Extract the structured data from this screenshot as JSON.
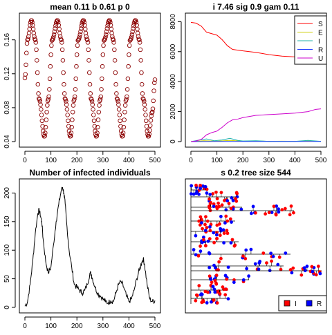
{
  "chart_data": [
    {
      "type": "scatter",
      "title": "mean 0.11 b 0.61 p 0",
      "x_ticks": [
        "0",
        "100",
        "200",
        "300",
        "400",
        "500"
      ],
      "y_ticks": [
        "0.04",
        "0.08",
        "0.12",
        "0.16"
      ],
      "xlim": [
        0,
        500
      ],
      "ylim": [
        0.04,
        0.185
      ],
      "marker_color": "#8b0000",
      "series": {
        "x": [
          0,
          10,
          25,
          40,
          55,
          75,
          90,
          105,
          125,
          140,
          155,
          175,
          190,
          205,
          225,
          240,
          255,
          275,
          290,
          305,
          325,
          340,
          355,
          375,
          390,
          405,
          425,
          440,
          455,
          475,
          490,
          500
        ],
        "y": [
          0.115,
          0.16,
          0.183,
          0.16,
          0.09,
          0.046,
          0.09,
          0.16,
          0.183,
          0.16,
          0.09,
          0.046,
          0.09,
          0.16,
          0.183,
          0.16,
          0.09,
          0.046,
          0.09,
          0.16,
          0.183,
          0.16,
          0.09,
          0.046,
          0.09,
          0.16,
          0.183,
          0.16,
          0.09,
          0.046,
          0.075,
          0.113
        ]
      }
    },
    {
      "type": "line",
      "title": "i 7.46 sig 0.9 gam 0.11",
      "x_ticks": [
        "0",
        "100",
        "200",
        "300",
        "400",
        "500"
      ],
      "y_ticks": [
        "0",
        "2000",
        "4000",
        "6000",
        "8000"
      ],
      "xlim": [
        0,
        500
      ],
      "ylim": [
        0,
        8200
      ],
      "legend": "top-right",
      "series": [
        {
          "name": "S",
          "color": "#ff0000",
          "x": [
            0,
            20,
            40,
            60,
            80,
            100,
            120,
            140,
            160,
            180,
            200,
            250,
            300,
            350,
            400,
            450,
            500
          ],
          "y": [
            7950,
            7900,
            7700,
            7300,
            7200,
            7100,
            6800,
            6400,
            6150,
            6100,
            6050,
            5950,
            5800,
            5700,
            5650,
            5600,
            5550
          ]
        },
        {
          "name": "E",
          "color": "#cdcd00",
          "x": [
            0,
            50,
            100,
            150,
            200,
            250,
            300,
            350,
            400,
            450,
            500
          ],
          "y": [
            0,
            60,
            30,
            80,
            30,
            40,
            20,
            30,
            20,
            40,
            20
          ]
        },
        {
          "name": "I",
          "color": "#20b2aa",
          "x": [
            0,
            30,
            60,
            90,
            120,
            150,
            180,
            200,
            250,
            300,
            350,
            400,
            450,
            500
          ],
          "y": [
            0,
            100,
            180,
            60,
            110,
            220,
            80,
            40,
            60,
            20,
            20,
            20,
            80,
            20
          ]
        },
        {
          "name": "R",
          "color": "#1e3cff",
          "x": [
            0,
            100,
            200,
            300,
            400,
            500
          ],
          "y": [
            0,
            10,
            10,
            10,
            10,
            10
          ]
        },
        {
          "name": "U",
          "color": "#cc00cc",
          "x": [
            0,
            20,
            40,
            60,
            80,
            100,
            120,
            140,
            160,
            180,
            200,
            250,
            300,
            350,
            400,
            450,
            480,
            500
          ],
          "y": [
            0,
            40,
            150,
            450,
            600,
            700,
            950,
            1250,
            1450,
            1500,
            1600,
            1750,
            1800,
            1850,
            1900,
            2000,
            2150,
            2180
          ]
        }
      ]
    },
    {
      "type": "line",
      "title": "Number of infected individuals",
      "x_ticks": [
        "0",
        "100",
        "200",
        "300",
        "400",
        "500"
      ],
      "y_ticks": [
        "0",
        "50",
        "100",
        "150",
        "200"
      ],
      "xlim": [
        0,
        500
      ],
      "ylim": [
        0,
        215
      ],
      "series": [
        {
          "name": "",
          "color": "#000000",
          "x": [
            0,
            10,
            20,
            30,
            40,
            50,
            55,
            60,
            65,
            70,
            80,
            90,
            100,
            110,
            120,
            130,
            140,
            145,
            150,
            155,
            160,
            170,
            180,
            190,
            200,
            210,
            220,
            230,
            240,
            250,
            255,
            260,
            270,
            280,
            290,
            300,
            310,
            320,
            330,
            340,
            350,
            360,
            370,
            380,
            390,
            400,
            410,
            420,
            430,
            440,
            450,
            455,
            460,
            470,
            480,
            490,
            500
          ],
          "y": [
            2,
            10,
            40,
            80,
            130,
            165,
            170,
            160,
            150,
            120,
            80,
            60,
            70,
            110,
            150,
            180,
            205,
            210,
            200,
            180,
            150,
            100,
            70,
            40,
            35,
            30,
            25,
            30,
            40,
            60,
            58,
            50,
            35,
            25,
            20,
            15,
            10,
            8,
            12,
            10,
            25,
            40,
            45,
            35,
            20,
            10,
            15,
            30,
            50,
            65,
            80,
            85,
            75,
            40,
            15,
            10,
            12
          ]
        }
      ]
    },
    {
      "type": "other",
      "title": "s 0.2 tree size 544",
      "legend": "bottom-right",
      "legend_items": [
        {
          "name": "I",
          "color": "#ff0000"
        },
        {
          "name": "R",
          "color": "#0000ff"
        }
      ]
    }
  ]
}
